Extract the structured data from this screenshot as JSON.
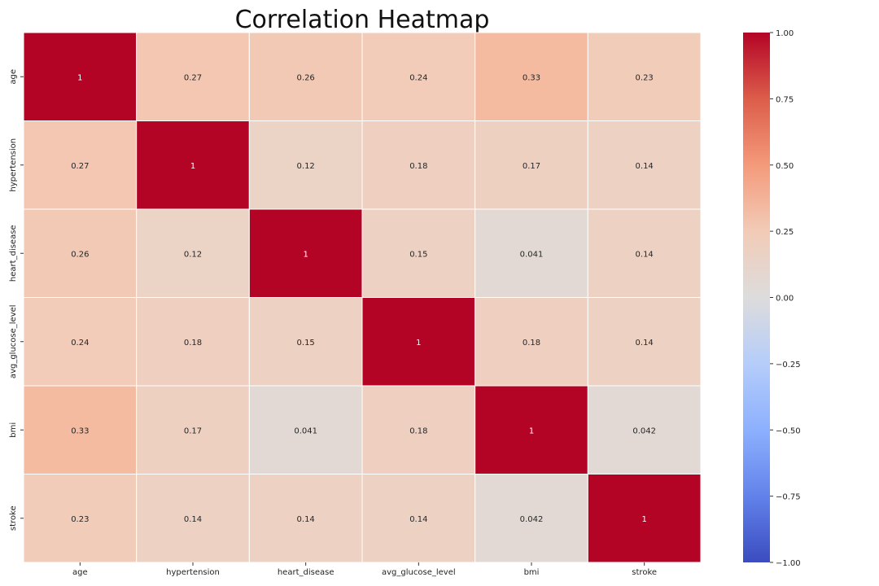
{
  "chart_data": {
    "type": "heatmap",
    "title": "Correlation Heatmap",
    "x_categories": [
      "age",
      "hypertension",
      "heart_disease",
      "avg_glucose_level",
      "bmi",
      "stroke"
    ],
    "y_categories": [
      "age",
      "hypertension",
      "heart_disease",
      "avg_glucose_level",
      "bmi",
      "stroke"
    ],
    "values": [
      [
        1,
        0.27,
        0.26,
        0.24,
        0.33,
        0.23
      ],
      [
        0.27,
        1,
        0.12,
        0.18,
        0.17,
        0.14
      ],
      [
        0.26,
        0.12,
        1,
        0.15,
        0.041,
        0.14
      ],
      [
        0.24,
        0.18,
        0.15,
        1,
        0.18,
        0.14
      ],
      [
        0.33,
        0.17,
        0.041,
        0.18,
        1,
        0.042
      ],
      [
        0.23,
        0.14,
        0.14,
        0.14,
        0.042,
        1
      ]
    ],
    "annotations": [
      [
        "1",
        "0.27",
        "0.26",
        "0.24",
        "0.33",
        "0.23"
      ],
      [
        "0.27",
        "1",
        "0.12",
        "0.18",
        "0.17",
        "0.14"
      ],
      [
        "0.26",
        "0.12",
        "1",
        "0.15",
        "0.041",
        "0.14"
      ],
      [
        "0.24",
        "0.18",
        "0.15",
        "1",
        "0.18",
        "0.14"
      ],
      [
        "0.33",
        "0.17",
        "0.041",
        "0.18",
        "1",
        "0.042"
      ],
      [
        "0.23",
        "0.14",
        "0.14",
        "0.14",
        "0.042",
        "1"
      ]
    ],
    "colorscale": "coolwarm",
    "vmin": -1,
    "vmax": 1,
    "colorbar_ticks": [
      1.0,
      0.75,
      0.5,
      0.25,
      0.0,
      -0.25,
      -0.5,
      -0.75,
      -1.0
    ],
    "colorbar_tick_labels": [
      "1.00",
      "0.75",
      "0.50",
      "0.25",
      "0.00",
      "−0.25",
      "−0.50",
      "−0.75",
      "−1.00"
    ],
    "legend": "right"
  }
}
